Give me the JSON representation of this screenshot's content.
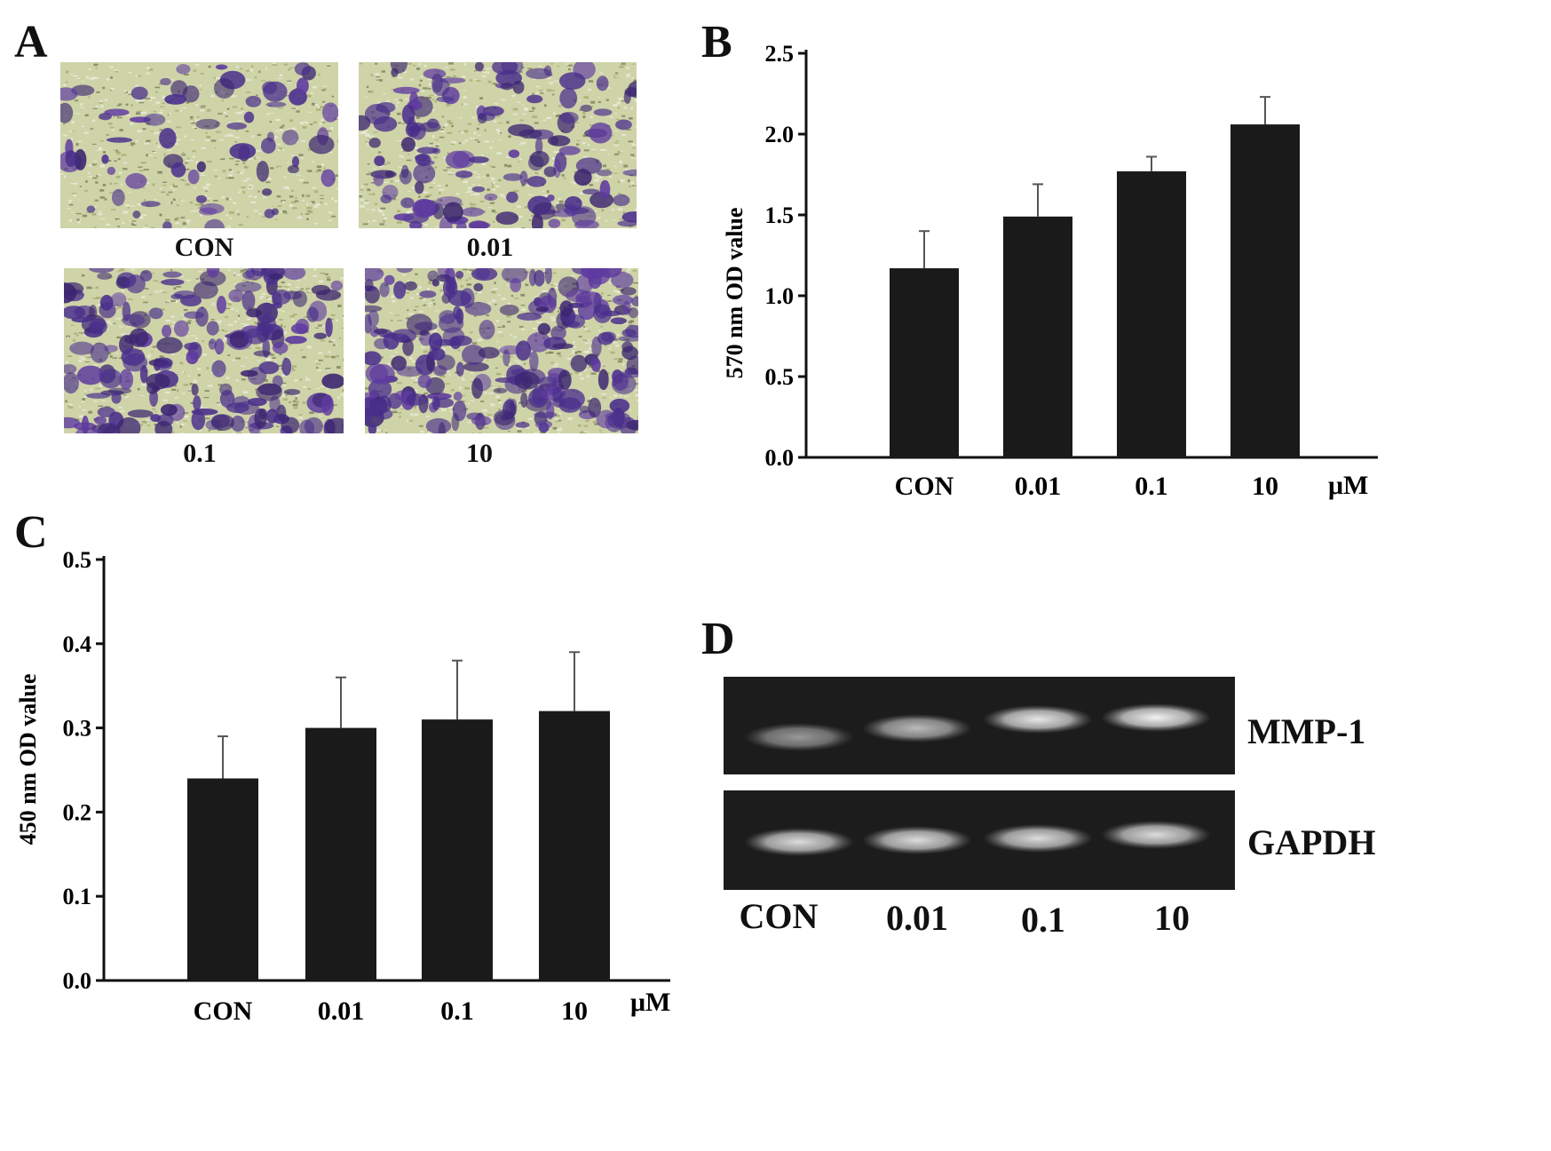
{
  "panels": {
    "a": {
      "letter": "A",
      "images": [
        {
          "label": "CON",
          "stain": 0.2
        },
        {
          "label": "0.01",
          "stain": 0.5
        },
        {
          "label": "0.1",
          "stain": 0.7
        },
        {
          "label": "10",
          "stain": 0.9
        }
      ]
    },
    "b": {
      "letter": "B"
    },
    "c": {
      "letter": "C"
    },
    "d": {
      "letter": "D",
      "rows": [
        {
          "label": "MMP-1",
          "intensity": [
            0.55,
            0.7,
            0.9,
            0.95
          ]
        },
        {
          "label": "GAPDH",
          "intensity": [
            0.85,
            0.85,
            0.85,
            0.85
          ]
        }
      ],
      "lanes": [
        "CON",
        "0.01",
        "0.1",
        "10"
      ]
    }
  },
  "chart_data": [
    {
      "type": "bar",
      "panel": "B",
      "categories": [
        "CON",
        "0.01",
        "0.1",
        "10"
      ],
      "values": [
        1.17,
        1.49,
        1.77,
        2.06
      ],
      "errors": [
        0.23,
        0.2,
        0.09,
        0.17
      ],
      "ylabel": "570 nm OD value",
      "unit_label": "μM",
      "ylim": [
        0,
        2.5
      ],
      "yticks": [
        "0.0",
        "0.5",
        "1.0",
        "1.5",
        "2.0",
        "2.5"
      ],
      "bar_color": "#1a1a1a"
    },
    {
      "type": "bar",
      "panel": "C",
      "categories": [
        "CON",
        "0.01",
        "0.1",
        "10"
      ],
      "values": [
        0.24,
        0.3,
        0.31,
        0.32
      ],
      "errors": [
        0.05,
        0.06,
        0.07,
        0.07
      ],
      "ylabel": "450 nm OD value",
      "unit_label": "μM",
      "ylim": [
        0,
        0.5
      ],
      "yticks": [
        "0.0",
        "0.1",
        "0.2",
        "0.3",
        "0.4",
        "0.5"
      ],
      "bar_color": "#1a1a1a"
    }
  ]
}
